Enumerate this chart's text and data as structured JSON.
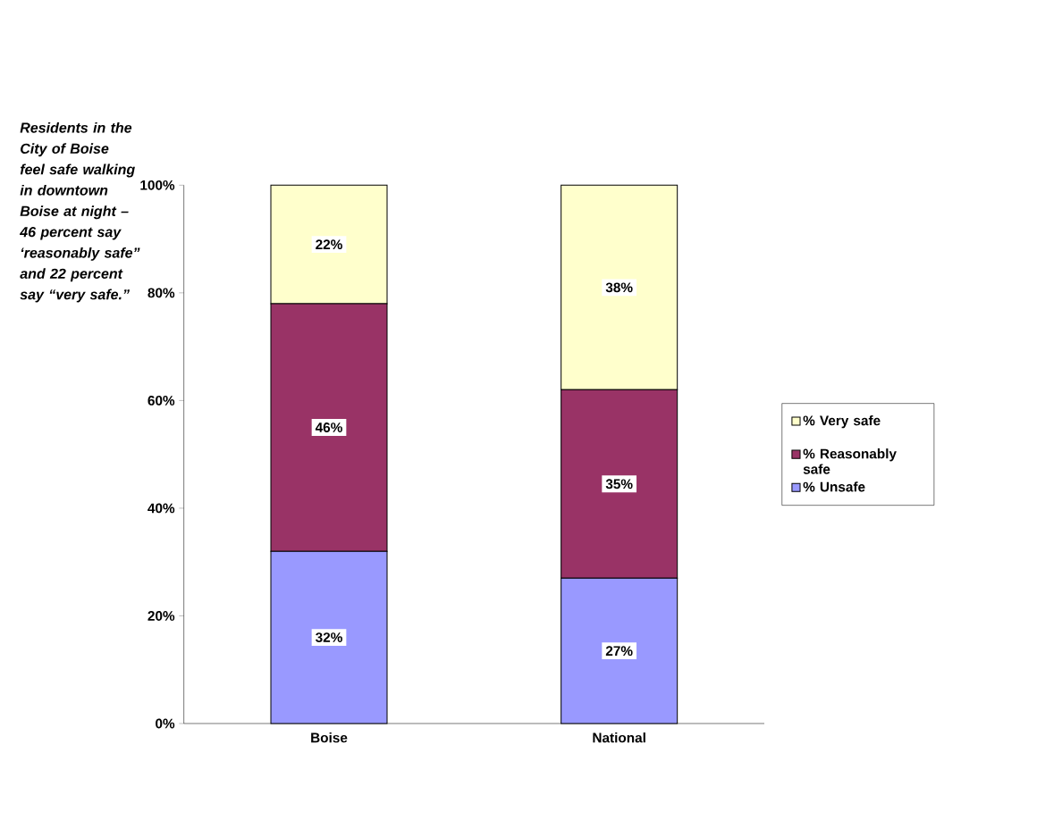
{
  "chart_data": {
    "type": "bar",
    "stacked": true,
    "categories": [
      "Boise",
      "National"
    ],
    "series": [
      {
        "name": "% Unsafe",
        "color": "#9999ff",
        "values": [
          32,
          27
        ],
        "value_labels": [
          "32%",
          "27%"
        ]
      },
      {
        "name": "% Reasonably safe",
        "color": "#993366",
        "values": [
          46,
          35
        ],
        "value_labels": [
          "46%",
          "35%"
        ]
      },
      {
        "name": "% Very safe",
        "color": "#ffffcc",
        "values": [
          22,
          38
        ],
        "value_labels": [
          "22%",
          "38%"
        ]
      }
    ],
    "ylim": [
      0,
      100
    ],
    "yticks": [
      {
        "value": 0,
        "label": "0%"
      },
      {
        "value": 20,
        "label": "20%"
      },
      {
        "value": 40,
        "label": "40%"
      },
      {
        "value": 60,
        "label": "60%"
      },
      {
        "value": 80,
        "label": "80%"
      },
      {
        "value": 100,
        "label": "100%"
      }
    ],
    "legend": "right",
    "annotations": [
      "Residents in the City of Boise feel safe walking in downtown Boise at night – 46 percent say ‘reasonably safe” and 22 percent say “very safe.”"
    ]
  }
}
